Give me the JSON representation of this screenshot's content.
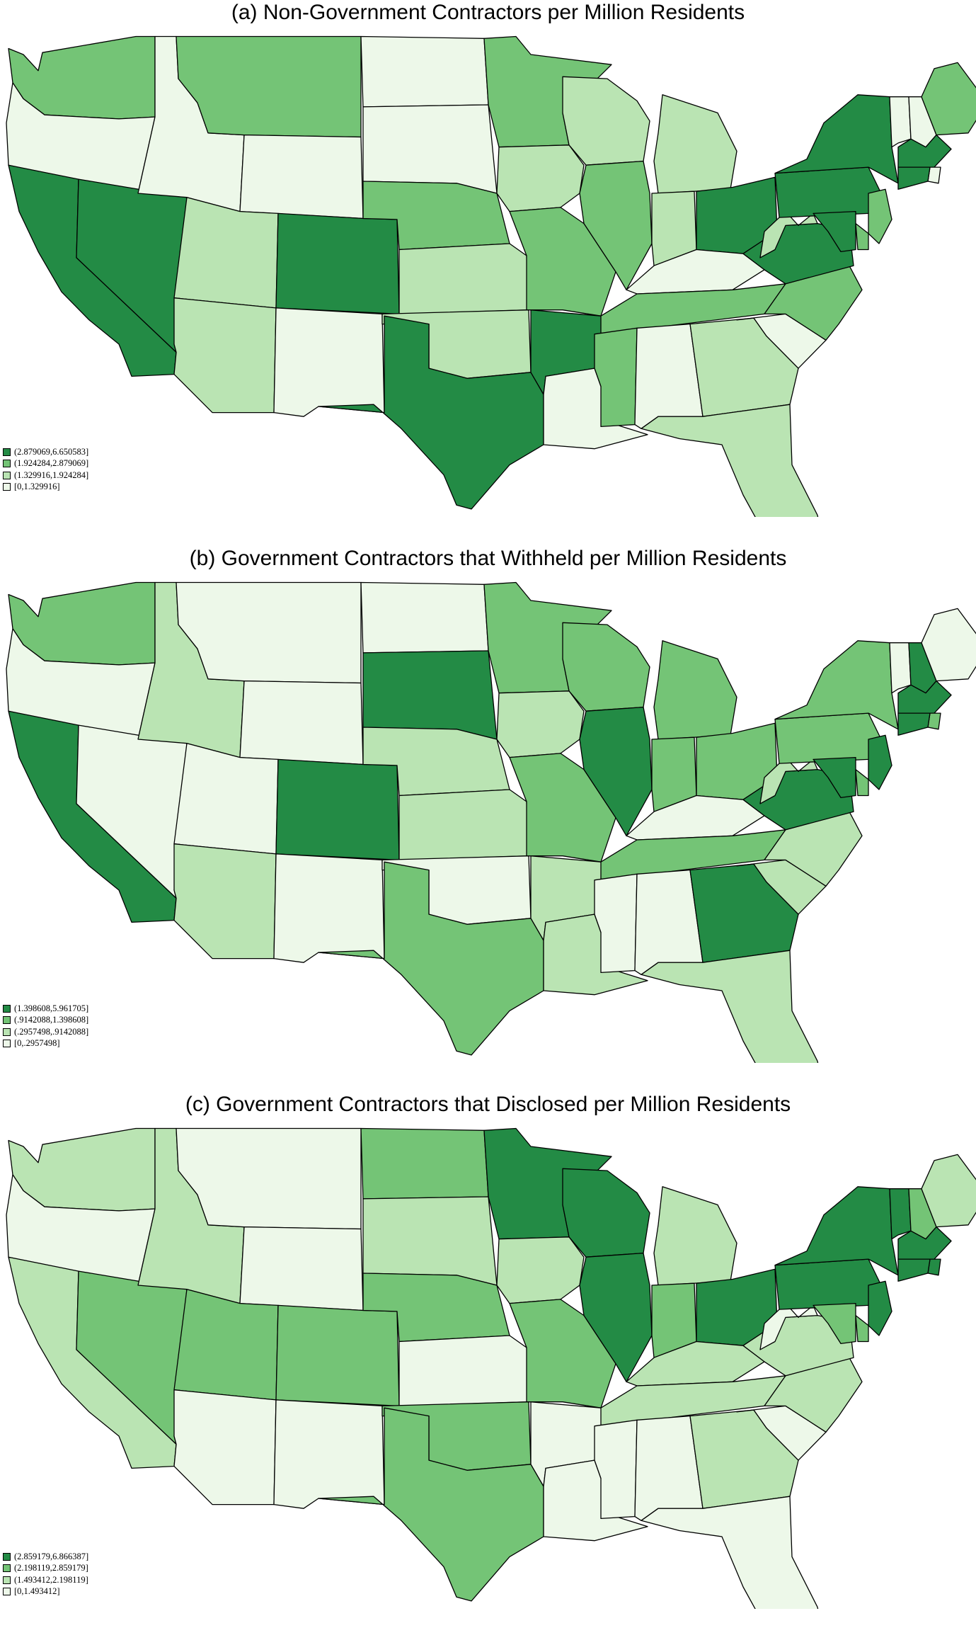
{
  "colors": {
    "c4": "#238b45",
    "c3": "#74c476",
    "c2": "#bae4b3",
    "c1": "#edf8e9",
    "border": "#000000",
    "background": "#ffffff"
  },
  "panels": [
    {
      "title": "(a) Non-Government Contractors per Million Residents",
      "legend": [
        "(2.879069,6.650583]",
        "(1.924284,2.879069]",
        "(1.329916,1.924284]",
        "[0,1.329916]"
      ],
      "shading": {
        "WA": 3,
        "OR": 1,
        "CA": 4,
        "NV": 4,
        "ID": 1,
        "MT": 3,
        "WY": 1,
        "UT": 2,
        "AZ": 2,
        "CO": 4,
        "NM": 1,
        "ND": 1,
        "SD": 1,
        "NE": 3,
        "KS": 2,
        "OK": 2,
        "TX": 4,
        "MN": 3,
        "IA": 2,
        "MO": 3,
        "AR": 4,
        "LA": 1,
        "WI": 2,
        "IL": 3,
        "MI": 2,
        "IN": 2,
        "OH": 4,
        "KY": 1,
        "TN": 3,
        "MS": 3,
        "AL": 1,
        "GA": 2,
        "FL": 2,
        "SC": 1,
        "NC": 3,
        "VA": 4,
        "WV": 2,
        "PA": 4,
        "NY": 4,
        "VT": 1,
        "NH": 1,
        "ME": 3,
        "MA": 4,
        "RI": 1,
        "CT": 4,
        "NJ": 3,
        "DE": 3,
        "MD": 4
      }
    },
    {
      "title": "(b) Government Contractors that Withheld per Million Residents",
      "legend": [
        "(1.398608,5.961705]",
        "(.9142088,1.398608]",
        "(.2957498,.9142088]",
        "[0,.2957498]"
      ],
      "shading": {
        "WA": 3,
        "OR": 1,
        "CA": 4,
        "NV": 1,
        "ID": 2,
        "MT": 1,
        "WY": 1,
        "UT": 1,
        "AZ": 2,
        "CO": 4,
        "NM": 1,
        "ND": 1,
        "SD": 4,
        "NE": 2,
        "KS": 2,
        "OK": 1,
        "TX": 3,
        "MN": 3,
        "IA": 2,
        "MO": 3,
        "AR": 2,
        "LA": 2,
        "WI": 3,
        "IL": 4,
        "MI": 3,
        "IN": 3,
        "OH": 3,
        "KY": 1,
        "TN": 3,
        "MS": 1,
        "AL": 1,
        "GA": 4,
        "FL": 2,
        "SC": 2,
        "NC": 2,
        "VA": 4,
        "WV": 2,
        "PA": 3,
        "NY": 3,
        "VT": 1,
        "NH": 4,
        "ME": 1,
        "MA": 4,
        "RI": 3,
        "CT": 4,
        "NJ": 4,
        "DE": 3,
        "MD": 4
      }
    },
    {
      "title": "(c) Government Contractors that Disclosed per Million Residents",
      "legend": [
        "(2.859179,6.866387]",
        "(2.198119,2.859179]",
        "(1.493412,2.198119]",
        "[0,1.493412]"
      ],
      "shading": {
        "WA": 2,
        "OR": 1,
        "CA": 2,
        "NV": 3,
        "ID": 2,
        "MT": 1,
        "WY": 1,
        "UT": 3,
        "AZ": 1,
        "CO": 3,
        "NM": 1,
        "ND": 3,
        "SD": 2,
        "NE": 3,
        "KS": 1,
        "OK": 3,
        "TX": 3,
        "MN": 4,
        "IA": 2,
        "MO": 3,
        "AR": 1,
        "LA": 1,
        "WI": 4,
        "IL": 4,
        "MI": 2,
        "IN": 3,
        "OH": 4,
        "KY": 2,
        "TN": 2,
        "MS": 1,
        "AL": 1,
        "GA": 2,
        "FL": 1,
        "SC": 1,
        "NC": 2,
        "VA": 2,
        "WV": 1,
        "PA": 4,
        "NY": 4,
        "VT": 4,
        "NH": 3,
        "ME": 2,
        "MA": 4,
        "RI": 4,
        "CT": 4,
        "NJ": 4,
        "DE": 3,
        "MD": 3
      }
    }
  ]
}
